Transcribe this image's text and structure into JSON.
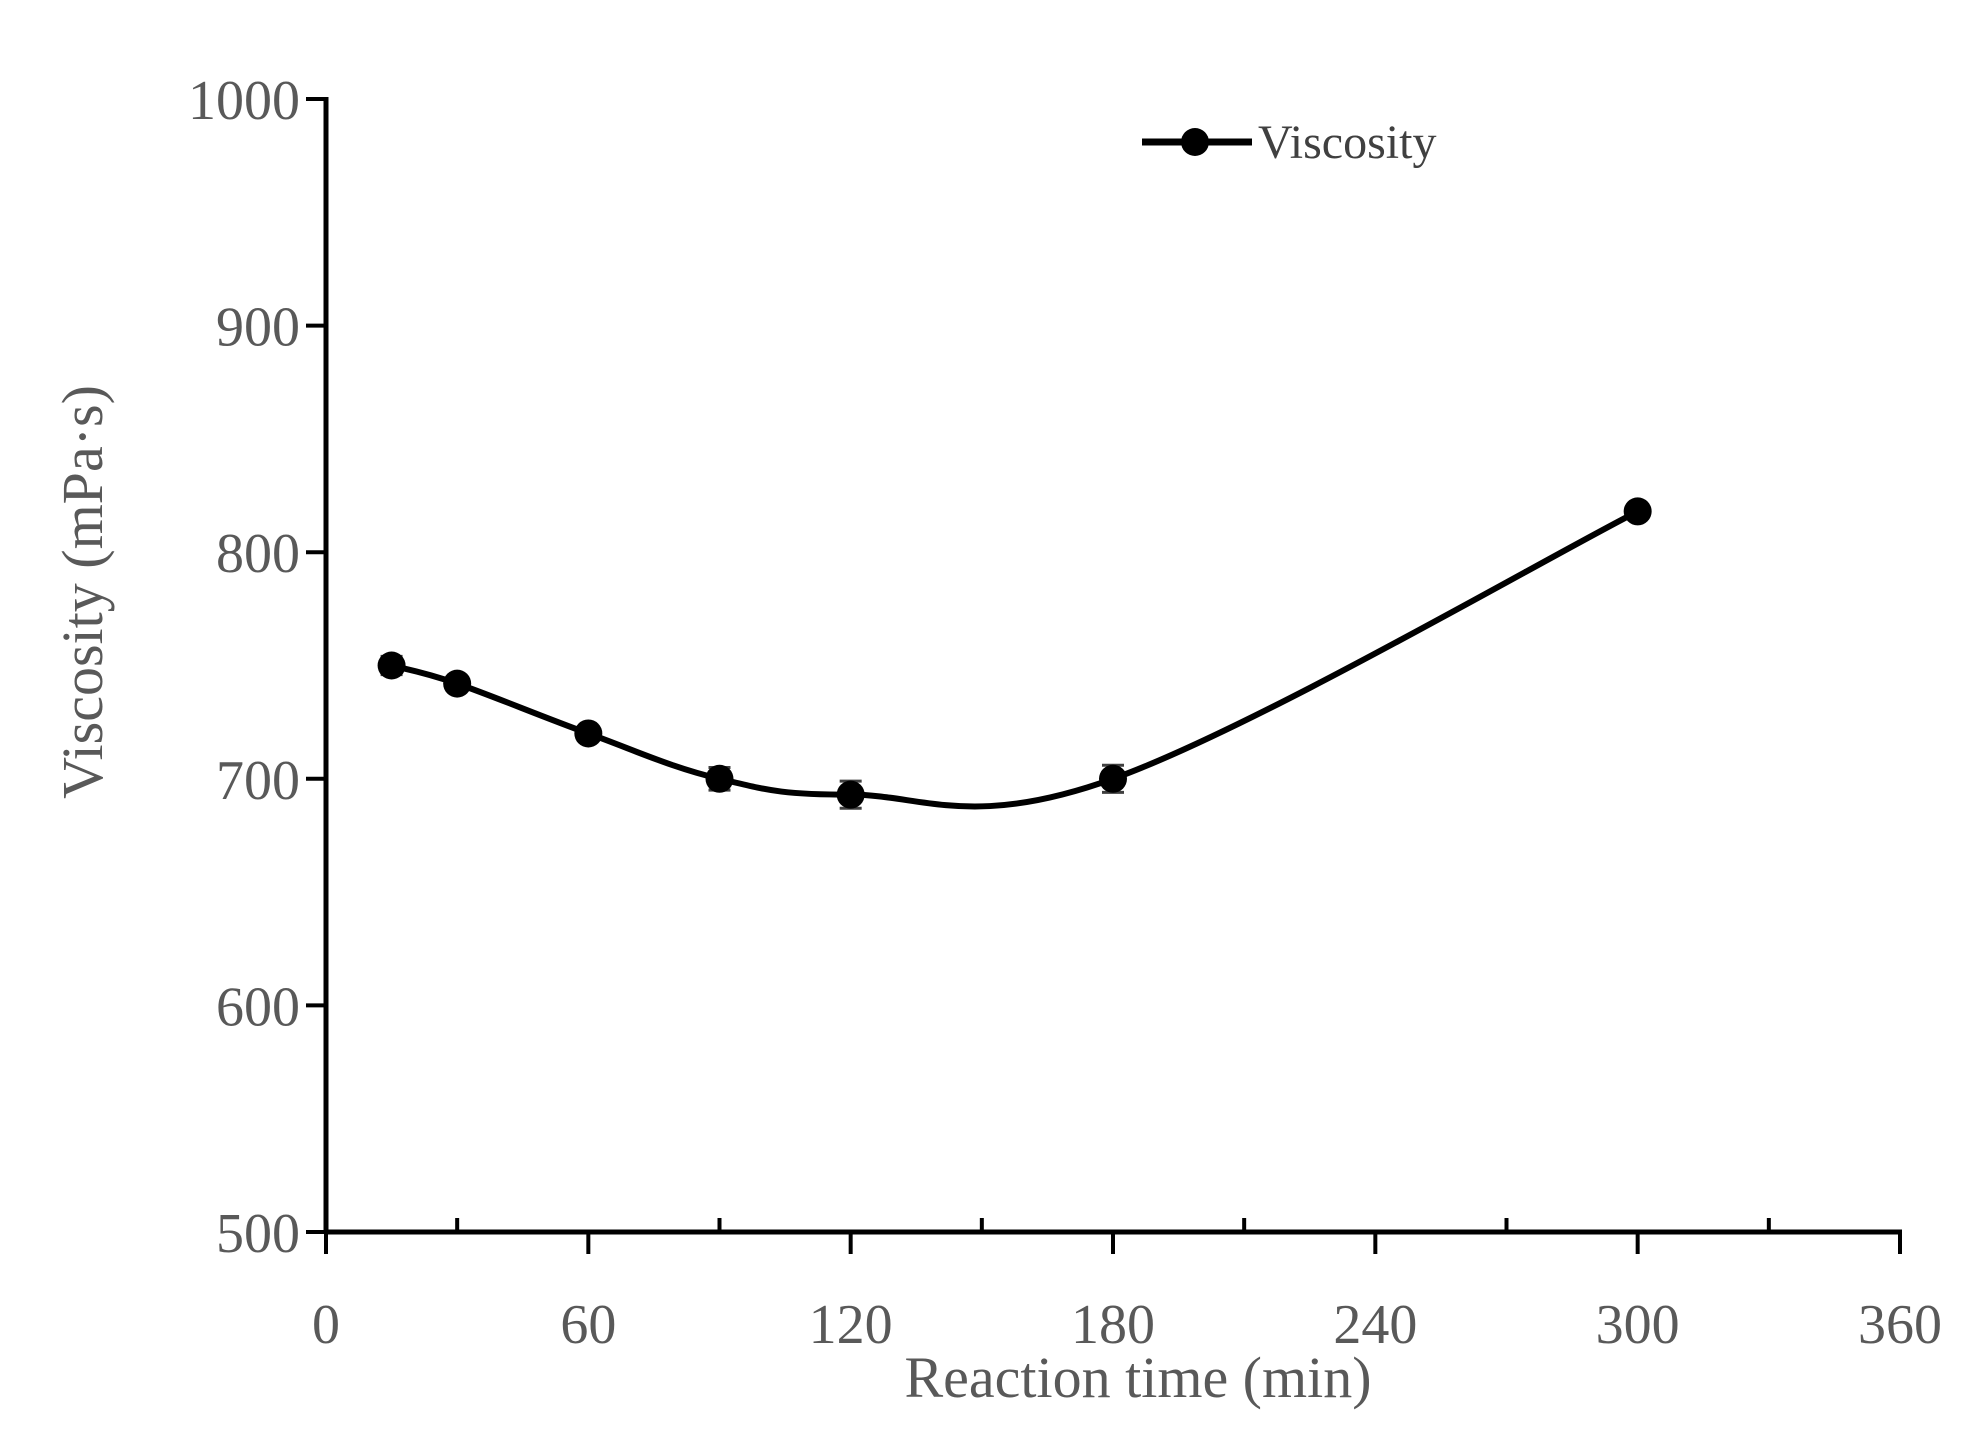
{
  "chart_data": {
    "type": "line",
    "title": "",
    "xlabel": "Reaction time (min)",
    "ylabel": "Viscosity (mPa·s)",
    "xlim": [
      0,
      360
    ],
    "ylim": [
      500,
      1000
    ],
    "x_ticks": [
      0,
      60,
      120,
      180,
      240,
      300,
      360
    ],
    "x_tick_labels": [
      "0",
      "60",
      "120",
      "180",
      "240",
      "300",
      "360"
    ],
    "x_minor_ticks": [
      30,
      90,
      150,
      210,
      270,
      330
    ],
    "y_ticks": [
      500,
      600,
      700,
      800,
      900,
      1000
    ],
    "y_tick_labels": [
      "500",
      "600",
      "700",
      "800",
      "900",
      "1000"
    ],
    "grid": false,
    "legend_position": "top-center",
    "series": [
      {
        "name": "Viscosity",
        "color": "#000000",
        "smooth": true,
        "x": [
          15,
          30,
          60,
          90,
          120,
          180,
          300
        ],
        "values": [
          750,
          742,
          720,
          700,
          693,
          700,
          818
        ],
        "error": [
          4,
          3,
          3,
          5,
          6,
          6,
          3
        ]
      }
    ]
  }
}
